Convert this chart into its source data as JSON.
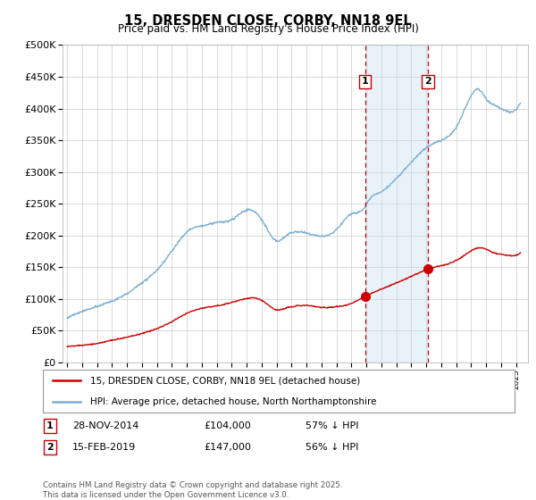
{
  "title": "15, DRESDEN CLOSE, CORBY, NN18 9EL",
  "subtitle": "Price paid vs. HM Land Registry's House Price Index (HPI)",
  "ylim": [
    0,
    500000
  ],
  "xlim_start": 1994.7,
  "xlim_end": 2025.8,
  "legend_entry1": "15, DRESDEN CLOSE, CORBY, NN18 9EL (detached house)",
  "legend_entry2": "HPI: Average price, detached house, North Northamptonshire",
  "marker1_x": 2014.91,
  "marker1_y": 104000,
  "marker1_label": "1",
  "marker1_date": "28-NOV-2014",
  "marker1_price": "£104,000",
  "marker1_hpi": "57% ↓ HPI",
  "marker2_x": 2019.12,
  "marker2_y": 147000,
  "marker2_label": "2",
  "marker2_date": "15-FEB-2019",
  "marker2_price": "£147,000",
  "marker2_hpi": "56% ↓ HPI",
  "vline1_x": 2014.91,
  "vline2_x": 2019.12,
  "shade_color": "#C8DCF0",
  "shade_alpha": 0.4,
  "red_line_color": "#CC0000",
  "blue_line_color": "#7BAFD4",
  "marker_color": "#CC0000",
  "vline_color": "#CC0000",
  "footer": "Contains HM Land Registry data © Crown copyright and database right 2025.\nThis data is licensed under the Open Government Licence v3.0.",
  "background_color": "#FFFFFF",
  "grid_color": "#CCCCCC"
}
